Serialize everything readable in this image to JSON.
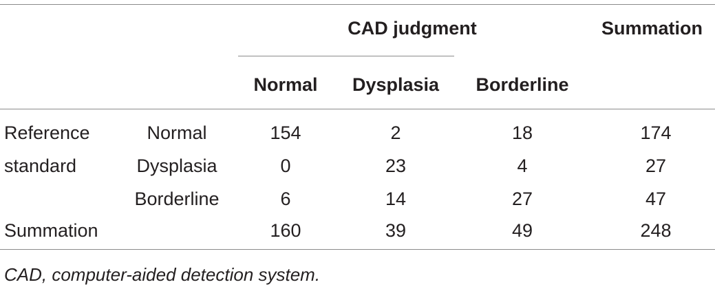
{
  "table": {
    "group_header": "CAD judgment",
    "summation_header": "Summation",
    "sub_headers": [
      "Normal",
      "Dysplasia",
      "Borderline"
    ],
    "row_group_label_line1": "Reference",
    "row_group_label_line2": "standard",
    "rows": [
      {
        "label": "Normal",
        "values": [
          "154",
          "2",
          "18",
          "174"
        ]
      },
      {
        "label": "Dysplasia",
        "values": [
          "0",
          "23",
          "4",
          "27"
        ]
      },
      {
        "label": "Borderline",
        "values": [
          "6",
          "14",
          "27",
          "47"
        ]
      }
    ],
    "total_row": {
      "label": "Summation",
      "values": [
        "160",
        "39",
        "49",
        "248"
      ]
    }
  },
  "caption": "CAD, computer-aided detection system."
}
